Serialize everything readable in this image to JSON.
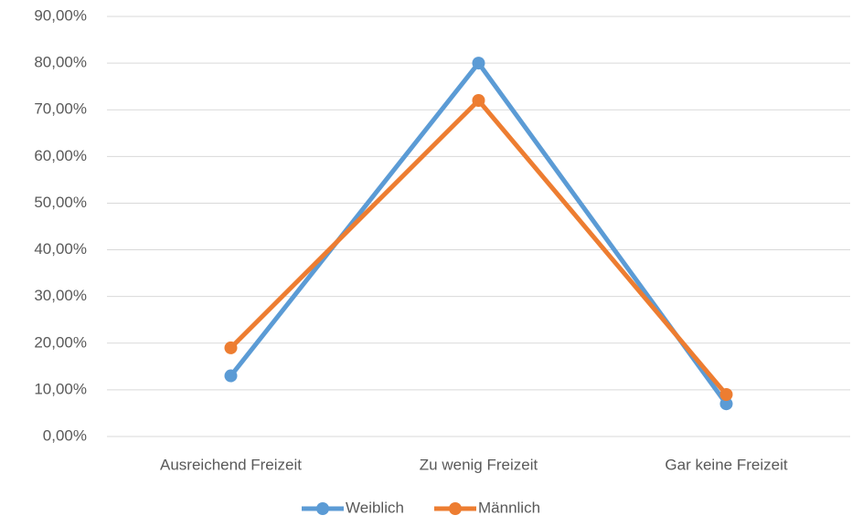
{
  "chart_data": {
    "type": "line",
    "categories": [
      "Ausreichend Freizeit",
      "Zu wenig Freizeit",
      "Gar keine Freizeit"
    ],
    "series": [
      {
        "name": "Weiblich",
        "color": "#5b9bd5",
        "values": [
          13,
          80,
          7
        ]
      },
      {
        "name": "Männlich",
        "color": "#ed7d31",
        "values": [
          19,
          72,
          9
        ]
      }
    ],
    "ylim": [
      0,
      90
    ],
    "yticks": [
      {
        "value": 0,
        "label": "0,00%"
      },
      {
        "value": 10,
        "label": "10,00%"
      },
      {
        "value": 20,
        "label": "20,00%"
      },
      {
        "value": 30,
        "label": "30,00%"
      },
      {
        "value": 40,
        "label": "40,00%"
      },
      {
        "value": 50,
        "label": "50,00%"
      },
      {
        "value": 60,
        "label": "60,00%"
      },
      {
        "value": 70,
        "label": "70,00%"
      },
      {
        "value": 80,
        "label": "80,00%"
      },
      {
        "value": 90,
        "label": "90,00%"
      }
    ],
    "grid": true,
    "legend": "bottom"
  }
}
